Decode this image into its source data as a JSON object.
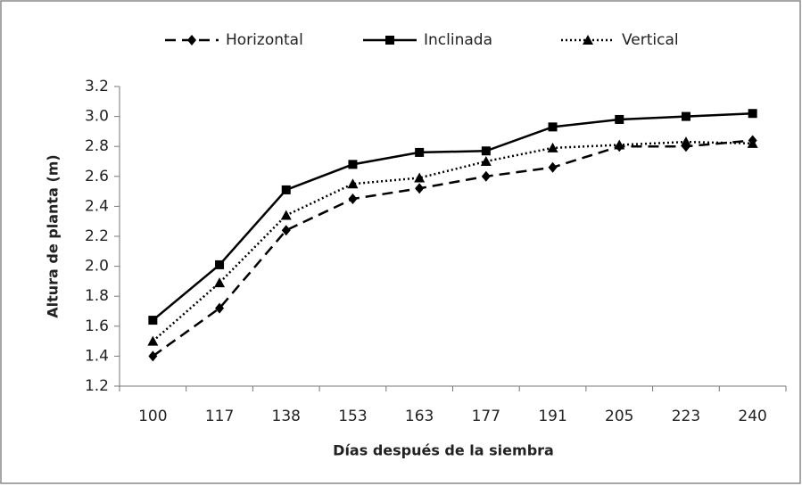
{
  "chart_data": {
    "type": "line",
    "x_label": "Días después de la siembra",
    "y_label": "Altura de planta (m)",
    "categories": [
      "100",
      "117",
      "138",
      "153",
      "163",
      "177",
      "191",
      "205",
      "223",
      "240"
    ],
    "series": [
      {
        "name": "Horizontal",
        "color": "#000000",
        "line_style": "dashed",
        "marker": "diamond",
        "values": [
          1.4,
          1.72,
          2.24,
          2.45,
          2.52,
          2.6,
          2.66,
          2.8,
          2.8,
          2.84
        ]
      },
      {
        "name": "Inclinada",
        "color": "#000000",
        "line_style": "solid",
        "marker": "square",
        "values": [
          1.64,
          2.01,
          2.51,
          2.68,
          2.76,
          2.77,
          2.93,
          2.98,
          3.0,
          3.02
        ]
      },
      {
        "name": "Vertical",
        "color": "#000000",
        "line_style": "dotted",
        "marker": "triangle",
        "values": [
          1.5,
          1.89,
          2.34,
          2.55,
          2.59,
          2.7,
          2.79,
          2.81,
          2.83,
          2.82
        ]
      }
    ],
    "ylim": [
      1.2,
      3.2
    ],
    "yticks": [
      1.2,
      1.4,
      1.6,
      1.8,
      {
        "value": 2,
        "label": "2.0"
      },
      2.2,
      2.4,
      2.6,
      2.8,
      {
        "value": 3,
        "label": "3.0"
      },
      3.2
    ],
    "legend": "top",
    "grid": false
  }
}
